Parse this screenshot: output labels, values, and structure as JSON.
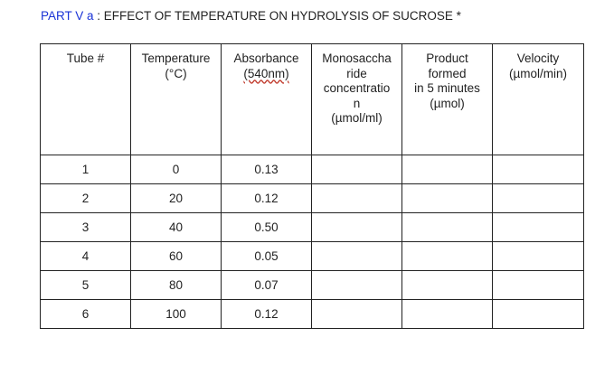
{
  "heading": {
    "part": "PART V a",
    "rest": " : EFFECT OF TEMPERATURE ON HYDROLYSIS OF SUCROSE *"
  },
  "table": {
    "headers": [
      {
        "line1": "Tube #",
        "line2": ""
      },
      {
        "line1": "Temperature",
        "line2": "(°C)"
      },
      {
        "line1": "Absorbance",
        "line2": "(540nm)"
      },
      {
        "line1": "Monosaccha\nride\nconcentratio\nn",
        "line2": "(µmol/ml)"
      },
      {
        "line1": "Product\nformed\nin 5 minutes",
        "line2": "(µmol)"
      },
      {
        "line1": "Velocity",
        "line2": "(µmol/min)"
      }
    ],
    "rows": [
      [
        "1",
        "0",
        "0.13",
        "",
        "",
        ""
      ],
      [
        "2",
        "20",
        "0.12",
        "",
        "",
        ""
      ],
      [
        "3",
        "40",
        "0.50",
        "",
        "",
        ""
      ],
      [
        "4",
        "60",
        "0.05",
        "",
        "",
        ""
      ],
      [
        "5",
        "80",
        "0.07",
        "",
        "",
        ""
      ],
      [
        "6",
        "100",
        "0.12",
        "",
        "",
        ""
      ]
    ]
  },
  "colors": {
    "heading_accent": "#1a33d6",
    "border": "#222222",
    "spellcheck_underline": "#c0392b"
  }
}
